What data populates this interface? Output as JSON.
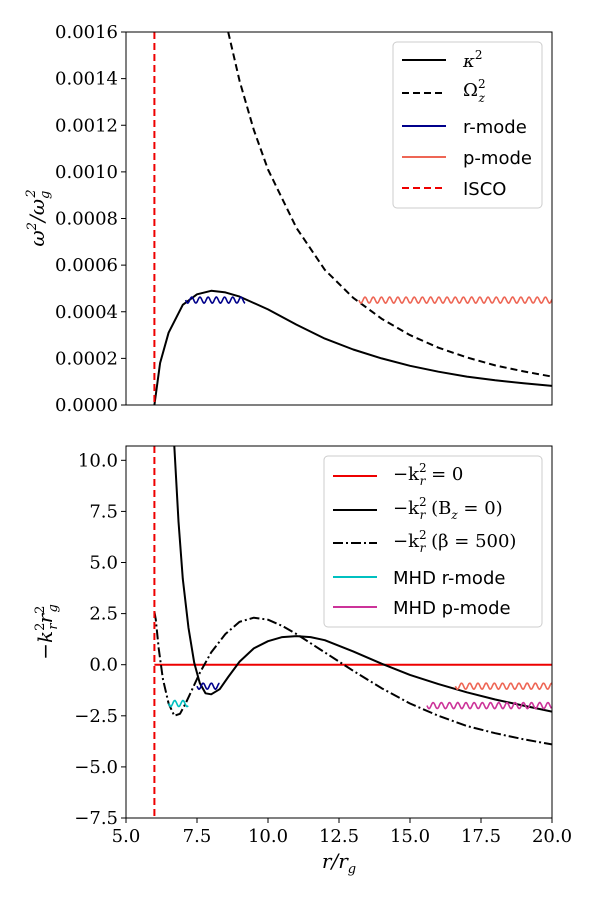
{
  "chart_data": [
    {
      "type": "line",
      "ylabel": "ω²/ω_g²",
      "xlim": [
        5.0,
        20.0
      ],
      "ylim": [
        0.0,
        0.0016
      ],
      "yticks": [
        "0.0000",
        "0.0002",
        "0.0004",
        "0.0006",
        "0.0008",
        "0.0010",
        "0.0012",
        "0.0014",
        "0.0016"
      ],
      "isco_x": 6.0,
      "legend_position": "top-right",
      "series": [
        {
          "name": "κ²",
          "style": "solid",
          "color": "#000000",
          "x": [
            6.0,
            6.2,
            6.5,
            7.0,
            7.5,
            8.0,
            8.5,
            9.0,
            10.0,
            11.0,
            12.0,
            13.0,
            14.0,
            15.0,
            16.0,
            17.0,
            18.0,
            19.0,
            20.0
          ],
          "y": [
            0.0,
            0.00018,
            0.00031,
            0.00043,
            0.000475,
            0.00049,
            0.000483,
            0.000465,
            0.00041,
            0.000345,
            0.000285,
            0.000238,
            0.0002,
            0.000168,
            0.000143,
            0.000122,
            0.000106,
            9.3e-05,
            8.2e-05
          ]
        },
        {
          "name": "Ω_z²",
          "style": "dashed",
          "color": "#000000",
          "x": [
            8.6,
            9.0,
            9.5,
            10.0,
            11.0,
            12.0,
            13.0,
            14.0,
            15.0,
            16.0,
            17.0,
            18.0,
            19.0,
            20.0
          ],
          "y": [
            0.0016,
            0.00139,
            0.00118,
            0.00101,
            0.00076,
            0.00058,
            0.00046,
            0.00037,
            0.0003,
            0.000246,
            0.000204,
            0.00017,
            0.000144,
            0.000122
          ]
        },
        {
          "name": "r-mode",
          "style": "wave",
          "color": "#00008b",
          "x_range": [
            7.1,
            9.2
          ],
          "y": 0.00045
        },
        {
          "name": "p-mode",
          "style": "wave",
          "color": "#ee6655",
          "x_range": [
            13.2,
            20.0
          ],
          "y": 0.00045
        },
        {
          "name": "ISCO",
          "style": "dashed",
          "color": "#ee0000",
          "x": 6.0
        }
      ]
    },
    {
      "type": "line",
      "xlabel": "r/r_g",
      "ylabel": "−k_r² r_g²",
      "xlim": [
        5.0,
        20.0
      ],
      "ylim": [
        -7.5,
        10.7
      ],
      "xticks": [
        "5.0",
        "7.5",
        "10.0",
        "12.5",
        "15.0",
        "17.5",
        "20.0"
      ],
      "yticks": [
        "−7.5",
        "−5.0",
        "−2.5",
        "0.0",
        "2.5",
        "5.0",
        "7.5",
        "10.0"
      ],
      "isco_x": 6.0,
      "legend_position": "top-right",
      "series": [
        {
          "name": "−k_r² = 0",
          "style": "solid",
          "color": "#ee0000",
          "x": [
            6.0,
            20.0
          ],
          "y": [
            0.0,
            0.0
          ]
        },
        {
          "name": "−k_r² (B_z = 0)",
          "style": "solid",
          "color": "#000000",
          "x": [
            6.7,
            6.85,
            7.0,
            7.2,
            7.4,
            7.6,
            7.8,
            8.0,
            8.3,
            8.6,
            9.0,
            9.5,
            10.0,
            10.5,
            11.0,
            11.5,
            12.0,
            13.0,
            14.0,
            15.0,
            16.0,
            17.0,
            18.0,
            19.0,
            20.0
          ],
          "y": [
            10.7,
            7.0,
            4.2,
            1.8,
            0.1,
            -0.9,
            -1.4,
            -1.45,
            -1.2,
            -0.6,
            0.15,
            0.8,
            1.15,
            1.35,
            1.4,
            1.35,
            1.2,
            0.65,
            0.05,
            -0.5,
            -0.95,
            -1.35,
            -1.7,
            -2.0,
            -2.3
          ]
        },
        {
          "name": "−k_r² (β = 500)",
          "style": "dashdot",
          "color": "#000000",
          "x": [
            6.0,
            6.05,
            6.15,
            6.3,
            6.5,
            6.7,
            6.9,
            7.1,
            7.3,
            7.6,
            8.0,
            8.5,
            9.0,
            9.5,
            10.0,
            10.5,
            11.0,
            12.0,
            13.0,
            14.0,
            15.0,
            16.0,
            17.0,
            18.0,
            19.0,
            20.0
          ],
          "y": [
            2.6,
            2.2,
            0.8,
            -0.7,
            -1.9,
            -2.5,
            -2.4,
            -1.9,
            -1.3,
            -0.4,
            0.6,
            1.5,
            2.1,
            2.3,
            2.2,
            1.9,
            1.5,
            0.6,
            -0.3,
            -1.15,
            -1.9,
            -2.5,
            -3.0,
            -3.35,
            -3.65,
            -3.9
          ]
        },
        {
          "name": "MHD r-mode",
          "style": "wave",
          "color": "#00c0c0",
          "x_range": [
            6.5,
            7.2
          ],
          "y": -1.9
        },
        {
          "name": "MHD p-mode",
          "style": "wave",
          "color": "#cc3399",
          "x_range": [
            15.6,
            20.0
          ],
          "y": -2.0
        },
        {
          "name": "",
          "style": "wave",
          "color": "#00008b",
          "x_range": [
            7.5,
            8.3
          ],
          "y": -1.05
        },
        {
          "name": "",
          "style": "wave",
          "color": "#ee6655",
          "x_range": [
            16.6,
            20.0
          ],
          "y": -1.05
        }
      ]
    }
  ],
  "legend_top": [
    {
      "name": "κ²",
      "style": "solid",
      "color": "#000000"
    },
    {
      "name": "Ω_z²",
      "style": "dashed",
      "color": "#000000"
    },
    {
      "name": "r-mode",
      "style": "solid",
      "color": "#00008b"
    },
    {
      "name": "p-mode",
      "style": "solid",
      "color": "#ee6655"
    },
    {
      "name": "ISCO",
      "style": "dashed",
      "color": "#ee0000"
    }
  ],
  "legend_bottom": [
    {
      "name": "−k_r² = 0",
      "style": "solid",
      "color": "#ee0000"
    },
    {
      "name": "−k_r² (B_z = 0)",
      "style": "solid",
      "color": "#000000"
    },
    {
      "name": "−k_r² (β = 500)",
      "style": "dashdot",
      "color": "#000000"
    },
    {
      "name": "MHD r-mode",
      "style": "solid",
      "color": "#00c0c0"
    },
    {
      "name": "MHD p-mode",
      "style": "solid",
      "color": "#cc3399"
    }
  ],
  "labels": {
    "top_ylabel_main": "ω",
    "top_ylabel_sup1": "2",
    "top_ylabel_slash": "/ω",
    "top_ylabel_sub": "g",
    "top_ylabel_sup2": "2",
    "bottom_ylabel_main": "−k",
    "bottom_ylabel_sub1": "r",
    "bottom_ylabel_sup1": "2",
    "bottom_ylabel_r": "r",
    "bottom_ylabel_sub2": "g",
    "bottom_ylabel_sup2": "2",
    "xlabel_r": "r",
    "xlabel_slash": "/r",
    "xlabel_sub": "g",
    "leg_kappa": "κ",
    "leg_kappa_sup": "2",
    "leg_omega": "Ω",
    "leg_omega_sup": "2",
    "leg_omega_sub": "z",
    "leg_rmode": "r-mode",
    "leg_pmode": "p-mode",
    "leg_isco": "ISCO",
    "leg_k0_a": "−k",
    "leg_k0_sup": "2",
    "leg_k0_sub": "r",
    "leg_k0_b": " = 0",
    "leg_kb_a": "−k",
    "leg_kb_sup": "2",
    "leg_kb_sub": "r",
    "leg_kb_b": " (B",
    "leg_kb_sub2": "z",
    "leg_kb_c": " = 0)",
    "leg_kbeta_a": "−k",
    "leg_kbeta_sup": "2",
    "leg_kbeta_sub": "r",
    "leg_kbeta_b": " (β = 500)",
    "leg_mhd_r": "MHD r-mode",
    "leg_mhd_p": "MHD p-mode"
  }
}
